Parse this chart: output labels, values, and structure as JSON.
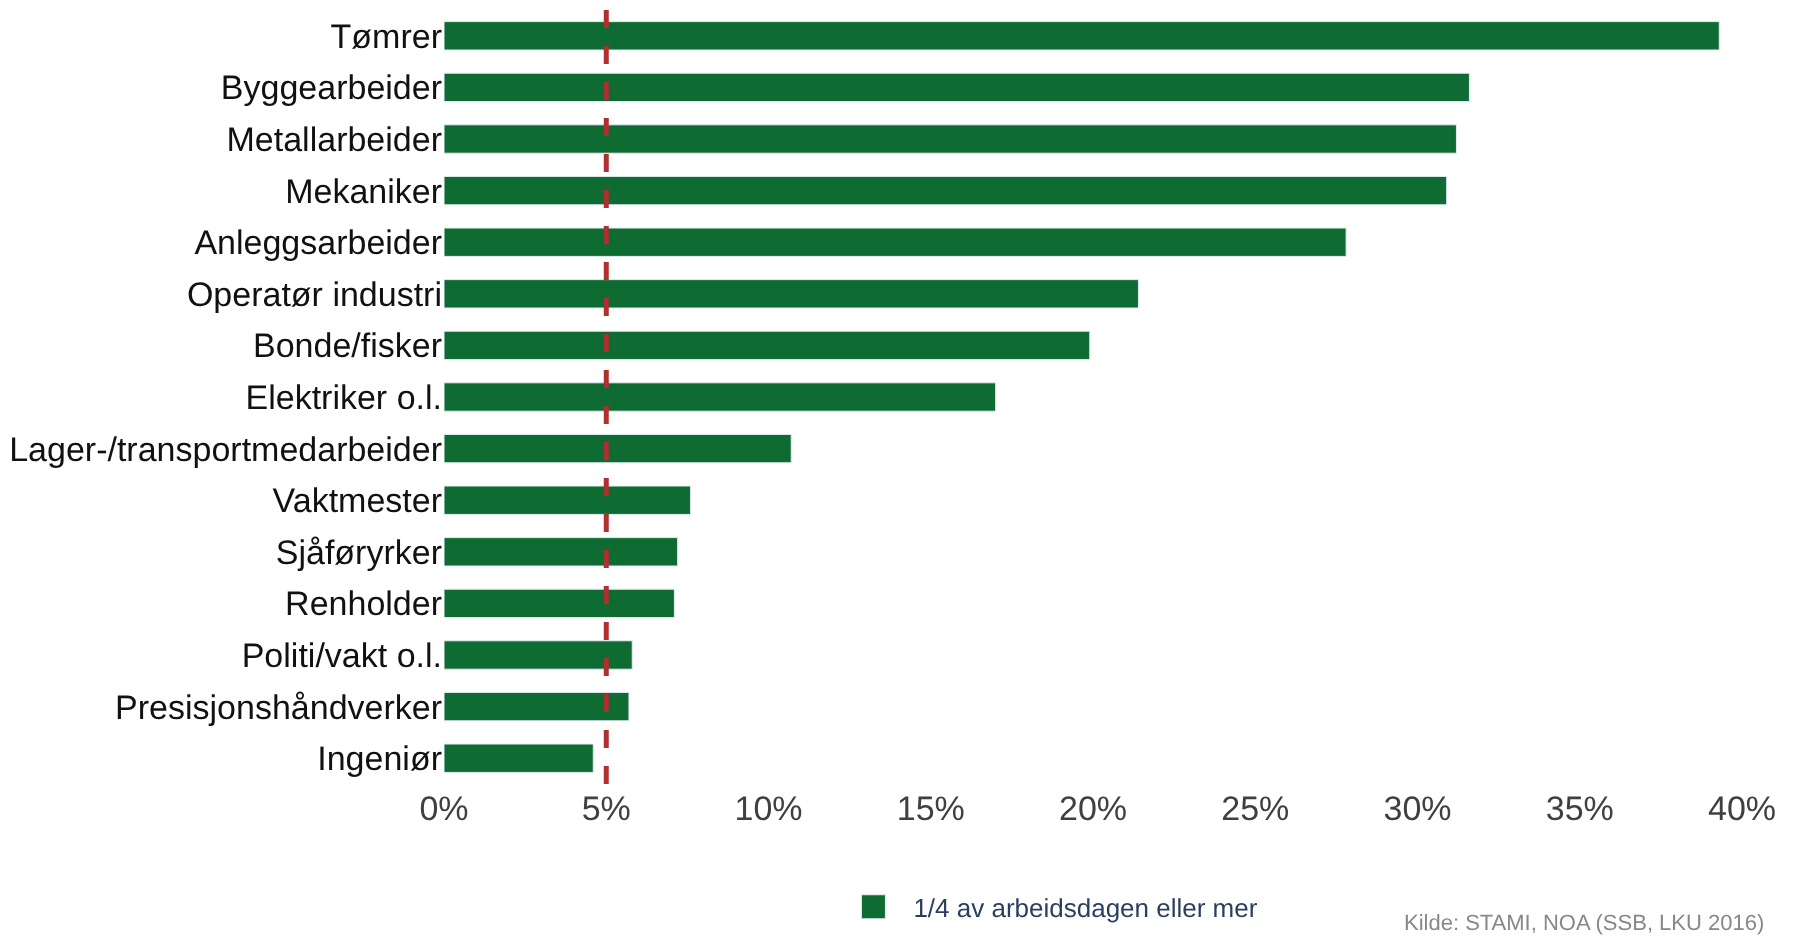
{
  "chart_data": {
    "type": "bar",
    "orientation": "horizontal",
    "categories": [
      "Tømrer",
      "Byggearbeider",
      "Metallarbeider",
      "Mekaniker",
      "Anleggsarbeider",
      "Operatør industri",
      "Bonde/fisker",
      "Elektriker o.l.",
      "Lager-/transportmedarbeider",
      "Vaktmester",
      "Sjåføryrker",
      "Renholder",
      "Politi/vakt o.l.",
      "Presisjonshåndverker",
      "Ingeniør"
    ],
    "series": [
      {
        "name": "1/4 av arbeidsdagen eller mer",
        "color": "#0e6b32",
        "values": [
          39.3,
          31.6,
          31.2,
          30.9,
          27.8,
          21.4,
          19.9,
          17.0,
          10.7,
          7.6,
          7.2,
          7.1,
          5.8,
          5.7,
          4.6
        ]
      }
    ],
    "xlim": [
      0,
      40
    ],
    "xticks": [
      {
        "value": 0,
        "label": "0%"
      },
      {
        "value": 5,
        "label": "5%"
      },
      {
        "value": 10,
        "label": "10%"
      },
      {
        "value": 15,
        "label": "15%"
      },
      {
        "value": 20,
        "label": "20%"
      },
      {
        "value": 25,
        "label": "25%"
      },
      {
        "value": 30,
        "label": "30%"
      },
      {
        "value": 35,
        "label": "35%"
      },
      {
        "value": 40,
        "label": "40%"
      }
    ],
    "ref_lines": [
      {
        "axis": "x",
        "value": 5,
        "color": "#b03030",
        "line_style": "dashed"
      }
    ],
    "legend": "bottom",
    "annotations": [
      "Kilde: STAMI, NOA (SSB, LKU 2016)"
    ]
  }
}
